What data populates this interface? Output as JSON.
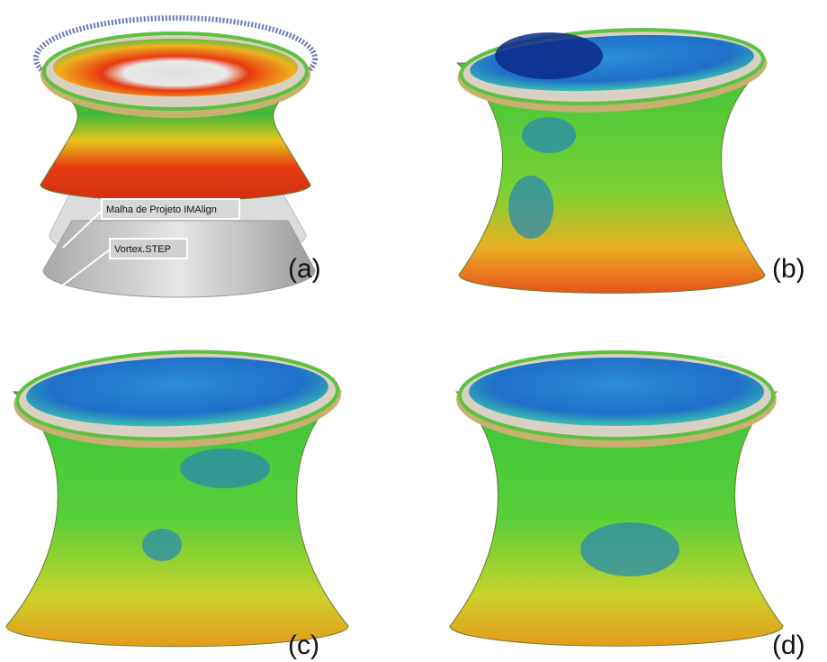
{
  "panels": [
    {
      "label": "(a)",
      "annotations": [
        "Malha de Projeto IMAlign",
        "Vortex.STEP"
      ]
    },
    {
      "label": "(b)"
    },
    {
      "label": "(c)"
    },
    {
      "label": "(d)"
    }
  ]
}
